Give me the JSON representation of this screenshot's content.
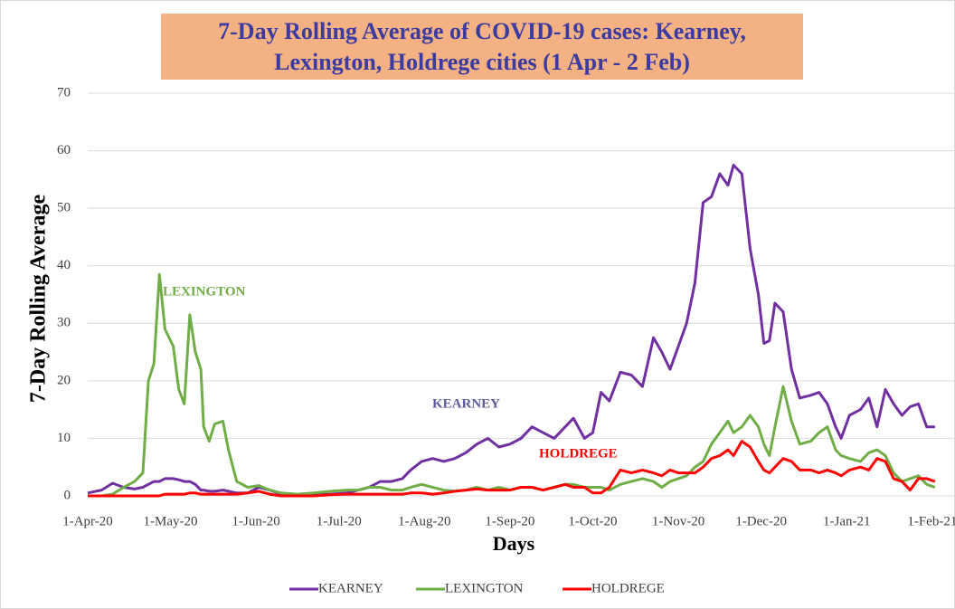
{
  "chart_data": {
    "type": "line",
    "title": "7-Day Rolling Average of COVID-19 cases: Kearney, Lexington, Holdrege cities (1 Apr - 2 Feb)",
    "x_label": "Days",
    "y_label": "7-Day Rolling Average",
    "x": [
      "2020-04-01",
      "2020-04-06",
      "2020-04-10",
      "2020-04-14",
      "2020-04-18",
      "2020-04-21",
      "2020-04-23",
      "2020-04-25",
      "2020-04-27",
      "2020-04-29",
      "2020-05-02",
      "2020-05-04",
      "2020-05-06",
      "2020-05-08",
      "2020-05-10",
      "2020-05-12",
      "2020-05-13",
      "2020-05-15",
      "2020-05-17",
      "2020-05-20",
      "2020-05-22",
      "2020-05-25",
      "2020-05-29",
      "2020-06-02",
      "2020-06-06",
      "2020-06-10",
      "2020-06-16",
      "2020-06-22",
      "2020-06-28",
      "2020-07-04",
      "2020-07-08",
      "2020-07-12",
      "2020-07-16",
      "2020-07-20",
      "2020-07-24",
      "2020-07-27",
      "2020-07-31",
      "2020-08-04",
      "2020-08-08",
      "2020-08-12",
      "2020-08-16",
      "2020-08-20",
      "2020-08-24",
      "2020-08-28",
      "2020-09-01",
      "2020-09-05",
      "2020-09-09",
      "2020-09-13",
      "2020-09-17",
      "2020-09-21",
      "2020-09-24",
      "2020-09-28",
      "2020-10-01",
      "2020-10-04",
      "2020-10-07",
      "2020-10-11",
      "2020-10-15",
      "2020-10-19",
      "2020-10-23",
      "2020-10-26",
      "2020-10-29",
      "2020-11-01",
      "2020-11-04",
      "2020-11-07",
      "2020-11-10",
      "2020-11-13",
      "2020-11-16",
      "2020-11-19",
      "2020-11-21",
      "2020-11-24",
      "2020-11-27",
      "2020-11-30",
      "2020-12-02",
      "2020-12-04",
      "2020-12-06",
      "2020-12-09",
      "2020-12-12",
      "2020-12-15",
      "2020-12-19",
      "2020-12-22",
      "2020-12-25",
      "2020-12-28",
      "2020-12-30",
      "2021-01-02",
      "2021-01-06",
      "2021-01-09",
      "2021-01-12",
      "2021-01-15",
      "2021-01-18",
      "2021-01-21",
      "2021-01-24",
      "2021-01-27",
      "2021-01-30",
      "2021-02-02"
    ],
    "series": [
      {
        "name": "KEARNEY",
        "color": "#7030A0",
        "values": [
          0.5,
          1,
          2.2,
          1.5,
          1.2,
          1.5,
          2,
          2.5,
          2.5,
          3,
          3,
          2.8,
          2.5,
          2.5,
          2,
          1,
          1,
          0.8,
          0.8,
          1,
          0.8,
          0.5,
          0.5,
          1.5,
          1,
          0.3,
          0.2,
          0.2,
          0.3,
          0.5,
          1,
          1.5,
          2.5,
          2.5,
          3,
          4.5,
          6,
          6.5,
          6,
          6.5,
          7.5,
          9,
          10,
          8.5,
          9,
          10,
          12,
          11,
          10,
          12,
          13.5,
          10,
          11,
          18,
          16.5,
          21.5,
          21,
          19,
          27.5,
          25,
          22,
          26,
          30,
          37,
          51,
          52,
          56,
          54,
          57.5,
          56,
          43,
          35,
          26.5,
          27,
          33.5,
          32,
          22,
          17,
          17.5,
          18,
          16,
          12,
          10,
          14,
          15,
          17,
          12,
          18.5,
          16,
          14,
          15.5,
          16,
          12,
          12
        ]
      },
      {
        "name": "LEXINGTON",
        "color": "#70AD47",
        "values": [
          0,
          0,
          0.3,
          1.5,
          2.5,
          4,
          20,
          23,
          38.5,
          29,
          26,
          18.5,
          16,
          31.5,
          25,
          22,
          12,
          9.5,
          12.5,
          13,
          8,
          2.5,
          1.5,
          1.8,
          1,
          0.5,
          0.3,
          0.5,
          0.8,
          1,
          1,
          1.5,
          1.5,
          1,
          1,
          1.5,
          2,
          1.5,
          1,
          0.8,
          1,
          1.5,
          1,
          1.5,
          1,
          1.5,
          1.5,
          1,
          1.5,
          2,
          2,
          1.5,
          1.5,
          1.5,
          1,
          2,
          2.5,
          3,
          2.5,
          1.5,
          2.5,
          3,
          3.5,
          5,
          6,
          9,
          11,
          13,
          11,
          12,
          14,
          12,
          9,
          7,
          12,
          19,
          13,
          9,
          9.5,
          11,
          12,
          8,
          7,
          6.5,
          6,
          7.5,
          8,
          7,
          4,
          2.5,
          3,
          3.5,
          2,
          1.5
        ]
      },
      {
        "name": "HOLDREGE",
        "color": "#FF0000",
        "values": [
          0,
          0,
          0,
          0,
          0,
          0,
          0,
          0,
          0,
          0.3,
          0.3,
          0.3,
          0.3,
          0.5,
          0.5,
          0.3,
          0.3,
          0.3,
          0.3,
          0.3,
          0.3,
          0.3,
          0.5,
          0.8,
          0.3,
          0,
          0,
          0,
          0.2,
          0.3,
          0.3,
          0.3,
          0.3,
          0.3,
          0.3,
          0.5,
          0.5,
          0.3,
          0.5,
          0.8,
          1,
          1.2,
          1,
          1,
          1,
          1.5,
          1.5,
          1,
          1.5,
          2,
          1.5,
          1.5,
          0.5,
          0.5,
          1.5,
          4.5,
          4,
          4.5,
          4,
          3.5,
          4.5,
          4,
          4,
          4,
          5,
          6.5,
          7,
          8,
          7,
          9.5,
          8.5,
          6,
          4.5,
          4,
          5,
          6.5,
          6,
          4.5,
          4.5,
          4,
          4.5,
          4,
          3.5,
          4.5,
          5,
          4.5,
          6.5,
          6,
          3,
          2.5,
          1,
          3,
          3,
          2.5
        ]
      }
    ],
    "annotations": [
      {
        "text": "LEXINGTON",
        "color": "#70AD47"
      },
      {
        "text": "KEARNEY",
        "color": "#5B5B9E"
      },
      {
        "text": "HOLDREGE",
        "color": "#FF0000"
      }
    ],
    "xlim": [
      "2020-04-01",
      "2021-02-04"
    ],
    "xticks": [
      {
        "value": "2020-04-01",
        "label": "1-Apr-20"
      },
      {
        "value": "2020-05-01",
        "label": "1-May-20"
      },
      {
        "value": "2020-06-01",
        "label": "1-Jun-20"
      },
      {
        "value": "2020-07-01",
        "label": "1-Jul-20"
      },
      {
        "value": "2020-08-01",
        "label": "1-Aug-20"
      },
      {
        "value": "2020-09-01",
        "label": "1-Sep-20"
      },
      {
        "value": "2020-10-01",
        "label": "1-Oct-20"
      },
      {
        "value": "2020-11-01",
        "label": "1-Nov-20"
      },
      {
        "value": "2020-12-01",
        "label": "1-Dec-20"
      },
      {
        "value": "2021-01-01",
        "label": "1-Jan-21"
      },
      {
        "value": "2021-02-01",
        "label": "1-Feb-21"
      }
    ],
    "ylim": [
      0,
      70
    ],
    "yticks": [
      0,
      10,
      20,
      30,
      40,
      50,
      60,
      70
    ],
    "grid": true
  }
}
